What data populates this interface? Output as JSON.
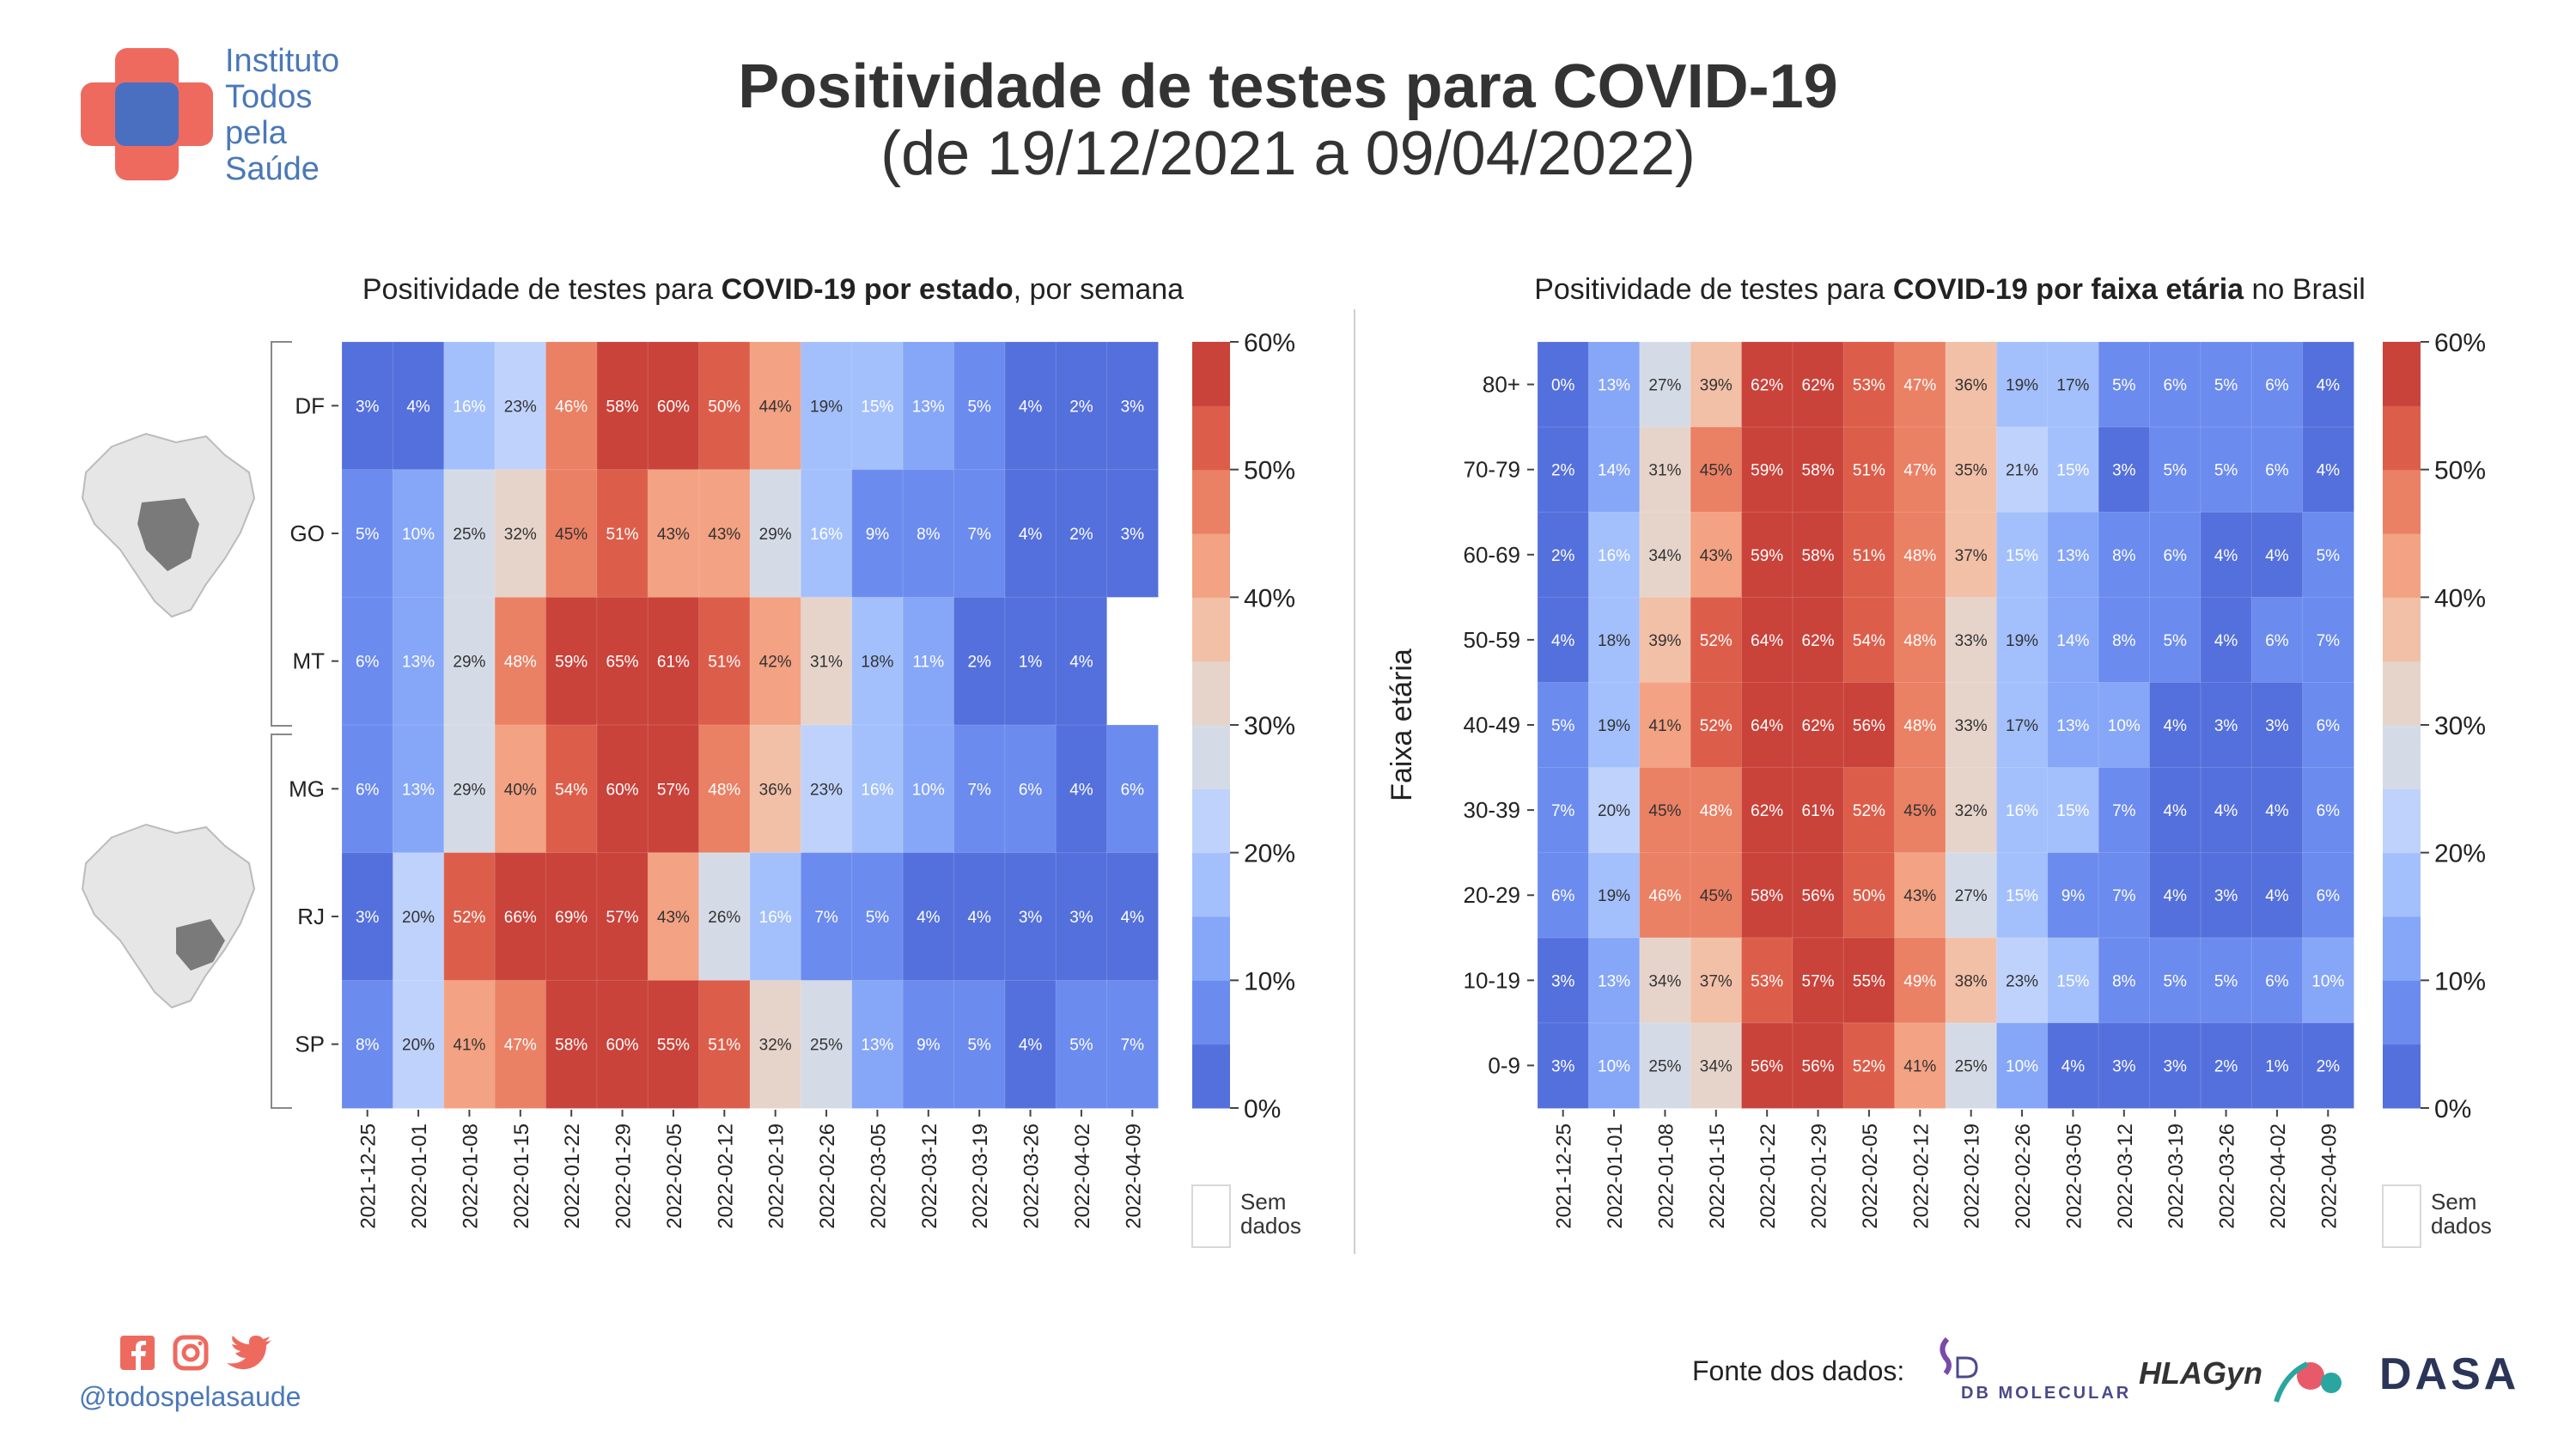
{
  "header": {
    "title": "Positividade de testes para COVID-19",
    "subtitle": "(de 19/12/2021 a 09/04/2022)"
  },
  "logo": {
    "lines": [
      "Instituto",
      "Todos",
      "pela",
      "Saúde"
    ]
  },
  "colors": {
    "palette": [
      "#5470dc",
      "#6b8bee",
      "#86a6f7",
      "#a3c0fc",
      "#bfd2fb",
      "#d5dbe6",
      "#e6d4cb",
      "#f2bfa7",
      "#f3a283",
      "#ea8064",
      "#dc5e4a",
      "#c9433b"
    ],
    "nodata": "#ffffff",
    "brazil_fill": "#e8e8e8",
    "brazil_highlight": "#777777"
  },
  "footer": {
    "handle": "@todospelasaude",
    "social_icons": [
      "facebook-icon",
      "instagram-icon",
      "twitter-icon"
    ],
    "source_label": "Fonte dos dados:",
    "source_brands": [
      "DB MOLECULAR",
      "HLAGyn",
      "DASA"
    ]
  },
  "chart_data": [
    {
      "type": "heatmap",
      "title_prefix": "Positividade de testes para ",
      "title_bold": "COVID-19 por estado",
      "title_suffix": ", por semana",
      "ylabel": "",
      "x": [
        "2021-12-25",
        "2022-01-01",
        "2022-01-08",
        "2022-01-15",
        "2022-01-22",
        "2022-01-29",
        "2022-02-05",
        "2022-02-12",
        "2022-02-19",
        "2022-02-26",
        "2022-03-05",
        "2022-03-12",
        "2022-03-19",
        "2022-03-26",
        "2022-04-02",
        "2022-04-09"
      ],
      "y": [
        "DF",
        "GO",
        "MT",
        "MG",
        "RJ",
        "SP"
      ],
      "values": [
        [
          3,
          4,
          16,
          23,
          46,
          58,
          60,
          50,
          44,
          19,
          15,
          13,
          5,
          4,
          2,
          3
        ],
        [
          5,
          10,
          25,
          32,
          45,
          51,
          43,
          43,
          29,
          16,
          9,
          8,
          7,
          4,
          2,
          3
        ],
        [
          6,
          13,
          29,
          48,
          59,
          65,
          61,
          51,
          42,
          31,
          18,
          11,
          2,
          1,
          4,
          null
        ],
        [
          6,
          13,
          29,
          40,
          54,
          60,
          57,
          48,
          36,
          23,
          16,
          10,
          7,
          6,
          4,
          6
        ],
        [
          3,
          20,
          52,
          66,
          69,
          57,
          43,
          26,
          16,
          7,
          5,
          4,
          4,
          3,
          3,
          4
        ],
        [
          8,
          20,
          41,
          47,
          58,
          60,
          55,
          51,
          32,
          25,
          13,
          9,
          5,
          4,
          5,
          7
        ]
      ],
      "value_suffix": "%",
      "colorbar": {
        "ticks": [
          "0%",
          "10%",
          "20%",
          "30%",
          "40%",
          "50%",
          "60%"
        ],
        "range": [
          0,
          60
        ],
        "nodata_label": [
          "Sem",
          "dados"
        ]
      }
    },
    {
      "type": "heatmap",
      "title_prefix": "Positividade de testes para ",
      "title_bold": "COVID-19 por faixa etária",
      "title_suffix": " no Brasil",
      "ylabel": "Faixa etária",
      "x": [
        "2021-12-25",
        "2022-01-01",
        "2022-01-08",
        "2022-01-15",
        "2022-01-22",
        "2022-01-29",
        "2022-02-05",
        "2022-02-12",
        "2022-02-19",
        "2022-02-26",
        "2022-03-05",
        "2022-03-12",
        "2022-03-19",
        "2022-03-26",
        "2022-04-02",
        "2022-04-09"
      ],
      "y": [
        "80+",
        "70-79",
        "60-69",
        "50-59",
        "40-49",
        "30-39",
        "20-29",
        "10-19",
        "0-9"
      ],
      "values": [
        [
          0,
          13,
          27,
          39,
          62,
          62,
          53,
          47,
          36,
          19,
          17,
          5,
          6,
          5,
          6,
          4
        ],
        [
          2,
          14,
          31,
          45,
          59,
          58,
          51,
          47,
          35,
          21,
          15,
          3,
          5,
          5,
          6,
          4
        ],
        [
          2,
          16,
          34,
          43,
          59,
          58,
          51,
          48,
          37,
          15,
          13,
          8,
          6,
          4,
          4,
          5
        ],
        [
          4,
          18,
          39,
          52,
          64,
          62,
          54,
          48,
          33,
          19,
          14,
          8,
          5,
          4,
          6,
          7
        ],
        [
          5,
          19,
          41,
          52,
          64,
          62,
          56,
          48,
          33,
          17,
          13,
          10,
          4,
          3,
          3,
          6
        ],
        [
          7,
          20,
          45,
          48,
          62,
          61,
          52,
          45,
          32,
          16,
          15,
          7,
          4,
          4,
          4,
          6
        ],
        [
          6,
          19,
          46,
          45,
          58,
          56,
          50,
          43,
          27,
          15,
          9,
          7,
          4,
          3,
          4,
          6
        ],
        [
          3,
          13,
          34,
          37,
          53,
          57,
          55,
          49,
          38,
          23,
          15,
          8,
          5,
          5,
          6,
          10
        ],
        [
          3,
          10,
          25,
          34,
          56,
          56,
          52,
          41,
          25,
          10,
          4,
          3,
          3,
          2,
          1,
          2
        ]
      ],
      "value_suffix": "%",
      "colorbar": {
        "ticks": [
          "0%",
          "10%",
          "20%",
          "30%",
          "40%",
          "50%",
          "60%"
        ],
        "range": [
          0,
          60
        ],
        "nodata_label": [
          "Sem",
          "dados"
        ]
      }
    }
  ]
}
